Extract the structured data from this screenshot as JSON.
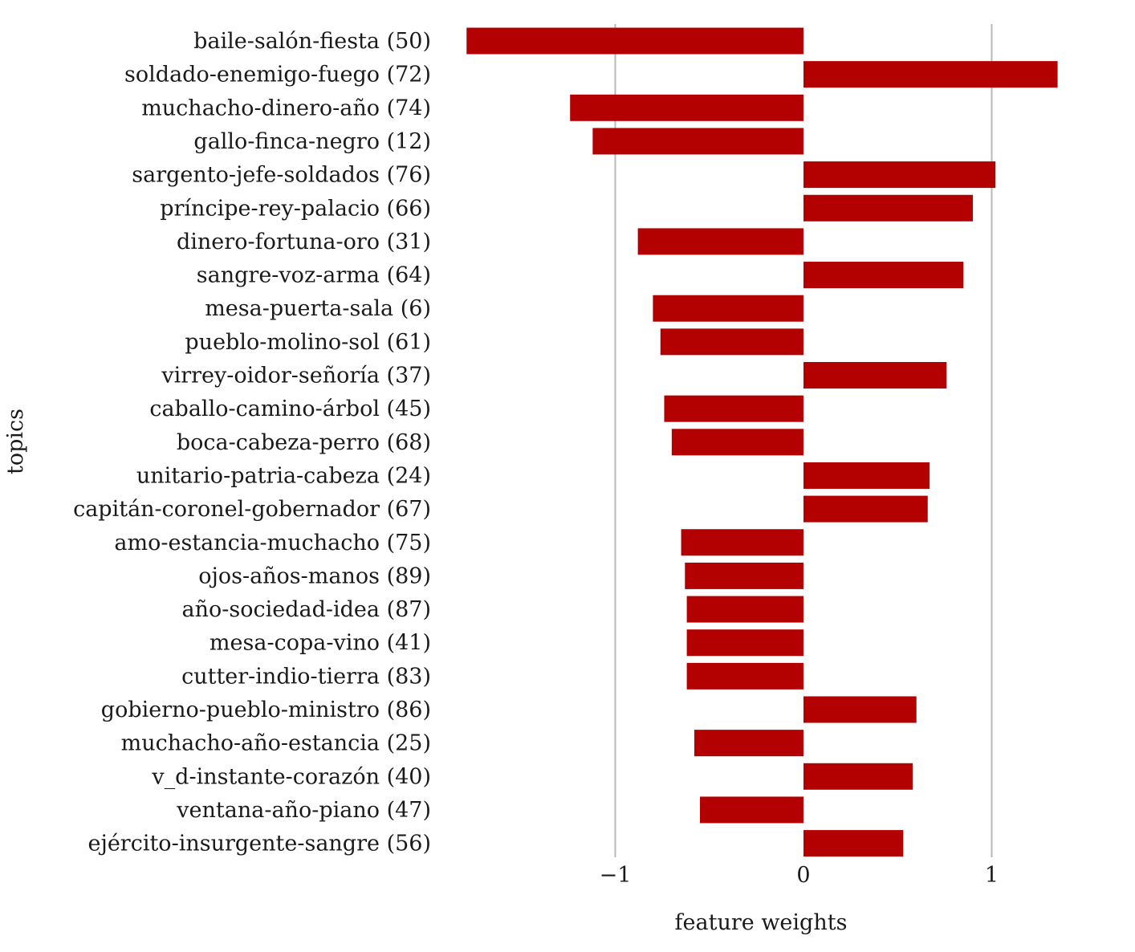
{
  "chart_data": {
    "type": "bar",
    "orientation": "horizontal",
    "xlabel": "feature weights",
    "ylabel": "topics",
    "xlim": [
      -1.85,
      1.6
    ],
    "xticks": [
      -1,
      0,
      1
    ],
    "xtick_labels": [
      "−1",
      "0",
      "1"
    ],
    "grid": "vertical",
    "bar_color": "#b30000",
    "categories": [
      "baile-salón-fiesta (50)",
      "soldado-enemigo-fuego (72)",
      "muchacho-dinero-año (74)",
      "gallo-finca-negro (12)",
      "sargento-jefe-soldados (76)",
      "príncipe-rey-palacio (66)",
      "dinero-fortuna-oro (31)",
      "sangre-voz-arma (64)",
      "mesa-puerta-sala (6)",
      "pueblo-molino-sol (61)",
      "virrey-oidor-señoría (37)",
      "caballo-camino-árbol (45)",
      "boca-cabeza-perro (68)",
      "unitario-patria-cabeza (24)",
      "capitán-coronel-gobernador (67)",
      "amo-estancia-muchacho (75)",
      "ojos-años-manos (89)",
      "año-sociedad-idea (87)",
      "mesa-copa-vino (41)",
      "cutter-indio-tierra (83)",
      "gobierno-pueblo-ministro (86)",
      "muchacho-año-estancia (25)",
      "v_d-instante-corazón (40)",
      "ventana-año-piano (47)",
      "ejército-insurgente-sangre (56)"
    ],
    "values": [
      -1.79,
      1.35,
      -1.24,
      -1.12,
      1.02,
      0.9,
      -0.88,
      0.85,
      -0.8,
      -0.76,
      0.76,
      -0.74,
      -0.7,
      0.67,
      0.66,
      -0.65,
      -0.63,
      -0.62,
      -0.62,
      -0.62,
      0.6,
      -0.58,
      0.58,
      -0.55,
      0.53
    ]
  }
}
